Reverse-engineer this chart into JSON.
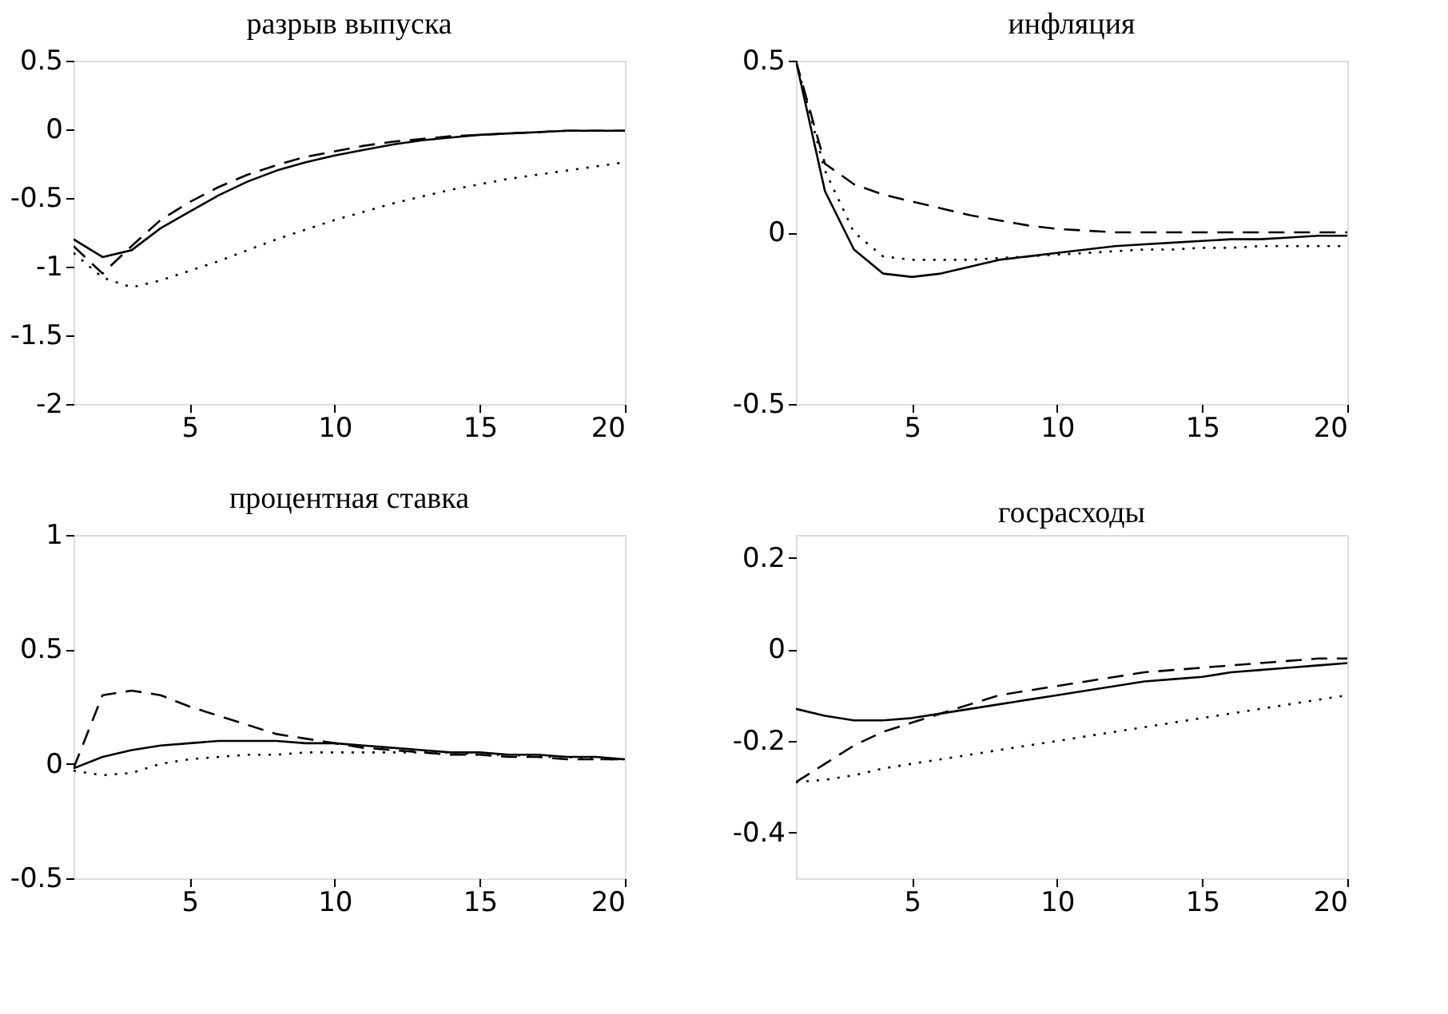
{
  "chart_data": [
    {
      "type": "line",
      "title": "разрыв выпуска",
      "x": [
        1,
        2,
        3,
        4,
        5,
        6,
        7,
        8,
        9,
        10,
        11,
        12,
        13,
        14,
        15,
        16,
        17,
        18,
        19,
        20
      ],
      "xlim": [
        1,
        20
      ],
      "xticks": [
        5,
        10,
        15,
        20
      ],
      "ylim": [
        -2,
        0.5
      ],
      "yticks": [
        -2,
        -1.5,
        -1,
        -0.5,
        0,
        0.5
      ],
      "grid": false,
      "series": [
        {
          "color": "#000000",
          "line_style": "solid",
          "values": [
            -0.8,
            -0.93,
            -0.88,
            -0.72,
            -0.6,
            -0.48,
            -0.38,
            -0.3,
            -0.24,
            -0.19,
            -0.15,
            -0.11,
            -0.08,
            -0.06,
            -0.04,
            -0.03,
            -0.02,
            -0.01,
            -0.01,
            -0.01
          ]
        },
        {
          "color": "#000000",
          "line_style": "dashed",
          "values": [
            -0.85,
            -1.05,
            -0.85,
            -0.66,
            -0.53,
            -0.42,
            -0.33,
            -0.26,
            -0.2,
            -0.16,
            -0.12,
            -0.09,
            -0.07,
            -0.05,
            -0.04,
            -0.03,
            -0.02,
            -0.01,
            -0.01,
            -0.01
          ]
        },
        {
          "color": "#000000",
          "line_style": "dotted",
          "values": [
            -0.9,
            -1.08,
            -1.15,
            -1.1,
            -1.03,
            -0.96,
            -0.88,
            -0.8,
            -0.73,
            -0.66,
            -0.6,
            -0.54,
            -0.49,
            -0.44,
            -0.4,
            -0.36,
            -0.33,
            -0.3,
            -0.27,
            -0.24
          ]
        }
      ]
    },
    {
      "type": "line",
      "title": "инфляция",
      "x": [
        1,
        2,
        3,
        4,
        5,
        6,
        7,
        8,
        9,
        10,
        11,
        12,
        13,
        14,
        15,
        16,
        17,
        18,
        19,
        20
      ],
      "xlim": [
        1,
        20
      ],
      "xticks": [
        5,
        10,
        15,
        20
      ],
      "ylim": [
        -0.5,
        0.5
      ],
      "yticks": [
        -0.5,
        0,
        0.5
      ],
      "grid": false,
      "series": [
        {
          "color": "#000000",
          "line_style": "solid",
          "values": [
            0.5,
            0.12,
            -0.05,
            -0.12,
            -0.13,
            -0.12,
            -0.1,
            -0.08,
            -0.07,
            -0.06,
            -0.05,
            -0.04,
            -0.035,
            -0.03,
            -0.025,
            -0.02,
            -0.02,
            -0.015,
            -0.01,
            -0.01
          ]
        },
        {
          "color": "#000000",
          "line_style": "dashed",
          "values": [
            0.5,
            0.2,
            0.14,
            0.11,
            0.09,
            0.07,
            0.05,
            0.035,
            0.02,
            0.01,
            0.005,
            0,
            0,
            0,
            0,
            0,
            0,
            0,
            0,
            0
          ]
        },
        {
          "color": "#000000",
          "line_style": "dotted",
          "values": [
            0.5,
            0.18,
            0.0,
            -0.07,
            -0.08,
            -0.08,
            -0.08,
            -0.075,
            -0.07,
            -0.065,
            -0.06,
            -0.055,
            -0.05,
            -0.05,
            -0.045,
            -0.045,
            -0.04,
            -0.04,
            -0.04,
            -0.04
          ]
        }
      ]
    },
    {
      "type": "line",
      "title": "процентная ставка",
      "x": [
        1,
        2,
        3,
        4,
        5,
        6,
        7,
        8,
        9,
        10,
        11,
        12,
        13,
        14,
        15,
        16,
        17,
        18,
        19,
        20
      ],
      "xlim": [
        1,
        20
      ],
      "xticks": [
        5,
        10,
        15,
        20
      ],
      "ylim": [
        -0.5,
        1
      ],
      "yticks": [
        -0.5,
        0,
        0.5,
        1
      ],
      "grid": false,
      "series": [
        {
          "color": "#000000",
          "line_style": "solid",
          "values": [
            -0.02,
            0.03,
            0.06,
            0.08,
            0.09,
            0.1,
            0.1,
            0.1,
            0.09,
            0.09,
            0.08,
            0.07,
            0.06,
            0.05,
            0.05,
            0.04,
            0.04,
            0.03,
            0.03,
            0.02
          ]
        },
        {
          "color": "#000000",
          "line_style": "dashed",
          "values": [
            -0.02,
            0.3,
            0.32,
            0.3,
            0.25,
            0.21,
            0.17,
            0.13,
            0.11,
            0.09,
            0.07,
            0.06,
            0.05,
            0.04,
            0.04,
            0.03,
            0.03,
            0.02,
            0.02,
            0.02
          ]
        },
        {
          "color": "#000000",
          "line_style": "dotted",
          "values": [
            -0.03,
            -0.05,
            -0.04,
            0.0,
            0.02,
            0.03,
            0.04,
            0.04,
            0.05,
            0.05,
            0.05,
            0.05,
            0.05,
            0.05,
            0.04,
            0.04,
            0.03,
            0.03,
            0.02,
            0.02
          ]
        }
      ]
    },
    {
      "type": "line",
      "title": "госрасходы",
      "x": [
        1,
        2,
        3,
        4,
        5,
        6,
        7,
        8,
        9,
        10,
        11,
        12,
        13,
        14,
        15,
        16,
        17,
        18,
        19,
        20
      ],
      "xlim": [
        1,
        20
      ],
      "xticks": [
        5,
        10,
        15,
        20
      ],
      "ylim": [
        -0.5,
        0.25
      ],
      "yticks": [
        -0.4,
        -0.2,
        0,
        0.2
      ],
      "grid": false,
      "series": [
        {
          "color": "#000000",
          "line_style": "solid",
          "values": [
            -0.13,
            -0.145,
            -0.155,
            -0.155,
            -0.15,
            -0.14,
            -0.13,
            -0.12,
            -0.11,
            -0.1,
            -0.09,
            -0.08,
            -0.07,
            -0.065,
            -0.06,
            -0.05,
            -0.045,
            -0.04,
            -0.035,
            -0.03
          ]
        },
        {
          "color": "#000000",
          "line_style": "dashed",
          "values": [
            -0.29,
            -0.25,
            -0.21,
            -0.18,
            -0.16,
            -0.14,
            -0.12,
            -0.1,
            -0.09,
            -0.08,
            -0.07,
            -0.06,
            -0.05,
            -0.045,
            -0.04,
            -0.035,
            -0.03,
            -0.025,
            -0.02,
            -0.02
          ]
        },
        {
          "color": "#000000",
          "line_style": "dotted",
          "values": [
            -0.29,
            -0.285,
            -0.275,
            -0.26,
            -0.25,
            -0.24,
            -0.23,
            -0.22,
            -0.21,
            -0.2,
            -0.19,
            -0.18,
            -0.17,
            -0.16,
            -0.15,
            -0.14,
            -0.13,
            -0.12,
            -0.11,
            -0.1
          ]
        }
      ]
    }
  ]
}
